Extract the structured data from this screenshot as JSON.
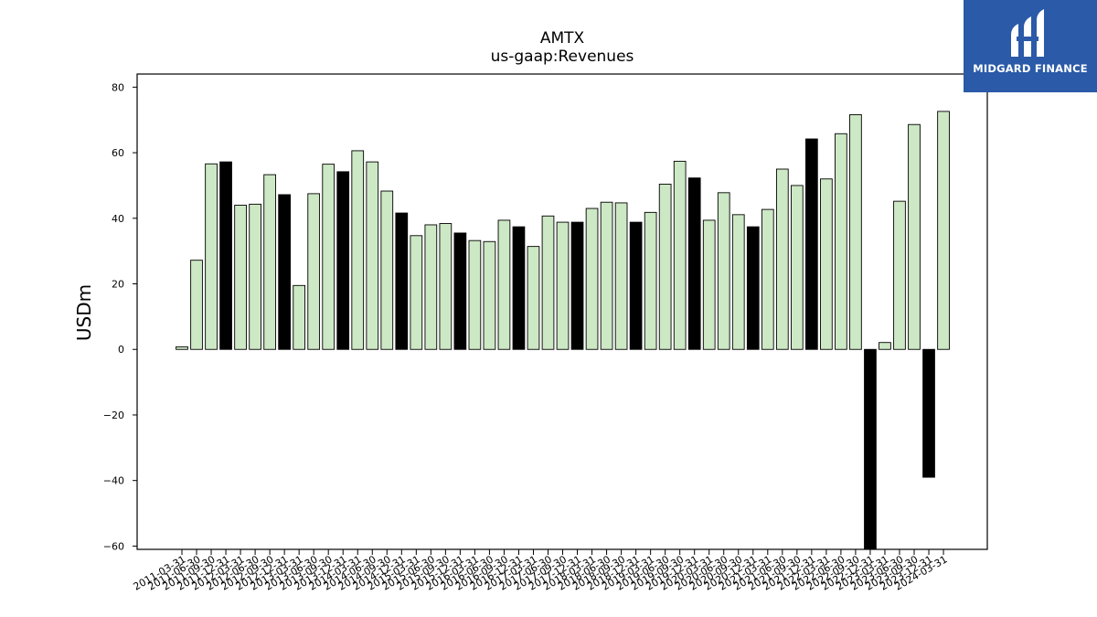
{
  "chart_data": {
    "type": "bar",
    "title": "AMTX",
    "subtitle": "us-gaap:Revenues",
    "xlabel": "",
    "ylabel": "USDm",
    "ylim": [
      -61,
      84
    ],
    "yticks": [
      80,
      60,
      40,
      20,
      0,
      -20,
      -40,
      -60
    ],
    "ytick_labels": [
      "80",
      "60",
      "40",
      "20",
      "0",
      "−20",
      "−40",
      "−60"
    ],
    "grid": false,
    "legend": "none",
    "categories": [
      "2011-03-31",
      "2011-06-30",
      "2011-09-30",
      "2011-12-31",
      "2012-03-31",
      "2012-06-30",
      "2012-09-30",
      "2012-12-31",
      "2013-03-31",
      "2013-06-30",
      "2013-09-30",
      "2013-12-31",
      "2014-03-31",
      "2014-06-30",
      "2014-09-30",
      "2014-12-31",
      "2015-03-31",
      "2015-06-30",
      "2015-09-30",
      "2015-12-31",
      "2016-03-31",
      "2016-06-30",
      "2016-09-30",
      "2016-12-31",
      "2017-03-31",
      "2017-06-30",
      "2017-09-30",
      "2017-12-31",
      "2018-03-31",
      "2018-06-30",
      "2018-09-30",
      "2018-12-31",
      "2019-03-31",
      "2019-06-30",
      "2019-09-30",
      "2019-12-31",
      "2020-03-31",
      "2020-06-30",
      "2020-09-30",
      "2020-12-31",
      "2021-03-31",
      "2021-06-30",
      "2021-09-30",
      "2021-12-31",
      "2022-03-31",
      "2022-06-30",
      "2022-09-30",
      "2022-12-31",
      "2023-03-31",
      "2023-06-30",
      "2023-09-30",
      "2023-12-31",
      "2024-03-31"
    ],
    "values": [
      0.8,
      27.2,
      56.6,
      57.2,
      44.0,
      44.3,
      53.3,
      47.2,
      19.5,
      47.5,
      56.5,
      54.2,
      60.6,
      57.2,
      48.3,
      41.6,
      34.7,
      38.0,
      38.4,
      35.5,
      33.2,
      32.9,
      39.4,
      37.4,
      31.4,
      40.7,
      38.8,
      38.8,
      43.0,
      44.9,
      44.7,
      38.8,
      41.8,
      50.4,
      57.4,
      52.3,
      39.4,
      47.8,
      41.1,
      37.4,
      42.7,
      55.0,
      50.0,
      64.2,
      52.0,
      65.8,
      71.6,
      -61.0,
      2.1,
      45.2,
      68.6,
      -39.0,
      72.6
    ],
    "highlighted": [
      false,
      false,
      false,
      true,
      false,
      false,
      false,
      true,
      false,
      false,
      false,
      true,
      false,
      false,
      false,
      true,
      false,
      false,
      false,
      true,
      false,
      false,
      false,
      true,
      false,
      false,
      false,
      true,
      false,
      false,
      false,
      true,
      false,
      false,
      false,
      true,
      false,
      false,
      false,
      true,
      false,
      false,
      false,
      true,
      false,
      false,
      false,
      true,
      false,
      false,
      false,
      true,
      false
    ],
    "colors": {
      "bar": "#cce8c4",
      "highlight": "#000000",
      "edge": "#000000"
    }
  },
  "logo": {
    "text": "MIDGARD FINANCE",
    "icon": "midgard-logo-icon",
    "color": "#2a5aa8"
  }
}
